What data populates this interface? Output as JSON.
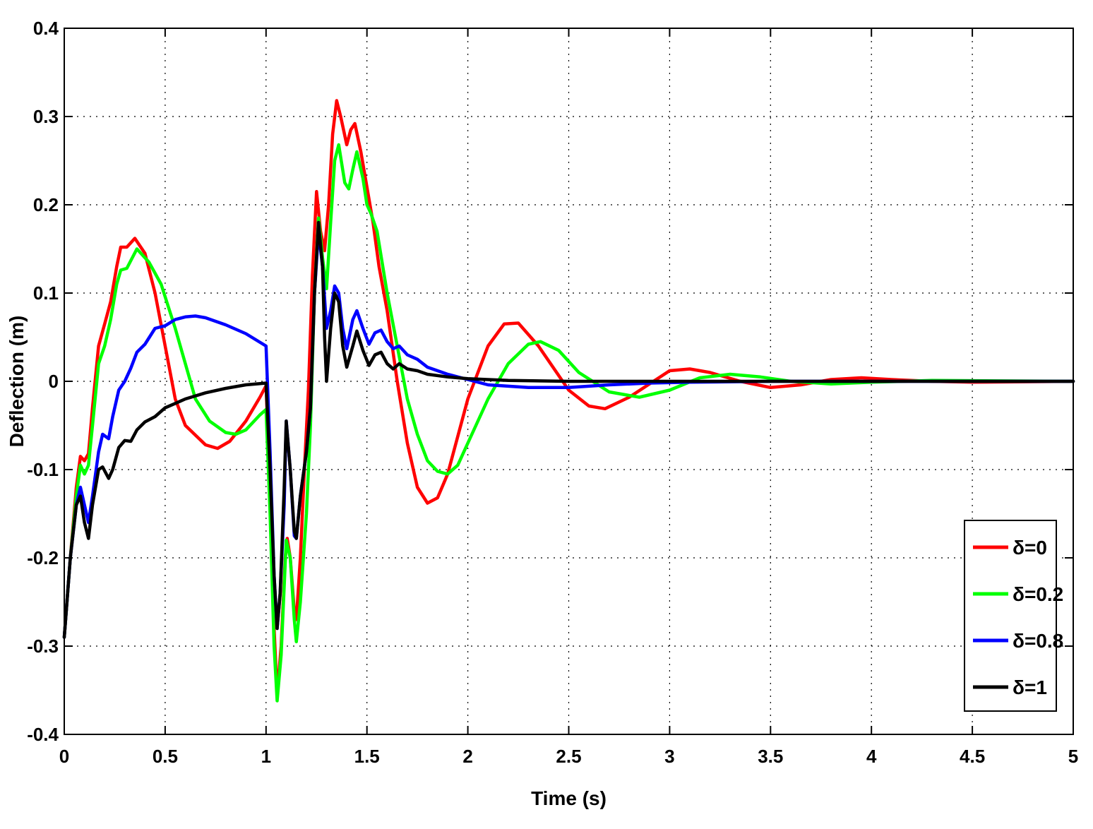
{
  "chart_data": {
    "type": "line",
    "title": "",
    "xlabel": "Time (s)",
    "ylabel": "Deflection (m)",
    "xlim": [
      0,
      5
    ],
    "ylim": [
      -0.4,
      0.4
    ],
    "xticks": [
      0,
      0.5,
      1,
      1.5,
      2,
      2.5,
      3,
      3.5,
      4,
      4.5,
      5
    ],
    "xtick_labels": [
      "0",
      "0.5",
      "1",
      "1.5",
      "2",
      "2.5",
      "3",
      "3.5",
      "4",
      "4.5",
      "5"
    ],
    "yticks": [
      -0.4,
      -0.3,
      -0.2,
      -0.1,
      0,
      0.1,
      0.2,
      0.3,
      0.4
    ],
    "ytick_labels": [
      "-0.4",
      "-0.3",
      "-0.2",
      "-0.1",
      "0",
      "0.1",
      "0.2",
      "0.3",
      "0.4"
    ],
    "grid": true,
    "legend_position": "bottom-right",
    "series": [
      {
        "name": "δ=0",
        "color": "#ff0000",
        "points": [
          [
            0,
            -0.29
          ],
          [
            0.03,
            -0.2
          ],
          [
            0.06,
            -0.12
          ],
          [
            0.08,
            -0.085
          ],
          [
            0.1,
            -0.09
          ],
          [
            0.12,
            -0.082
          ],
          [
            0.14,
            -0.03
          ],
          [
            0.17,
            0.04
          ],
          [
            0.2,
            0.065
          ],
          [
            0.23,
            0.09
          ],
          [
            0.26,
            0.13
          ],
          [
            0.28,
            0.152
          ],
          [
            0.31,
            0.152
          ],
          [
            0.35,
            0.162
          ],
          [
            0.4,
            0.145
          ],
          [
            0.45,
            0.1
          ],
          [
            0.5,
            0.04
          ],
          [
            0.55,
            -0.02
          ],
          [
            0.6,
            -0.05
          ],
          [
            0.7,
            -0.072
          ],
          [
            0.76,
            -0.076
          ],
          [
            0.82,
            -0.068
          ],
          [
            0.9,
            -0.045
          ],
          [
            0.97,
            -0.018
          ],
          [
            1.0,
            -0.005
          ],
          [
            1.02,
            -0.12
          ],
          [
            1.04,
            -0.28
          ],
          [
            1.055,
            -0.355
          ],
          [
            1.075,
            -0.3
          ],
          [
            1.095,
            -0.2
          ],
          [
            1.105,
            -0.178
          ],
          [
            1.12,
            -0.2
          ],
          [
            1.14,
            -0.26
          ],
          [
            1.15,
            -0.27
          ],
          [
            1.17,
            -0.2
          ],
          [
            1.19,
            -0.1
          ],
          [
            1.21,
            -0.01
          ],
          [
            1.23,
            0.12
          ],
          [
            1.25,
            0.215
          ],
          [
            1.27,
            0.17
          ],
          [
            1.29,
            0.148
          ],
          [
            1.31,
            0.2
          ],
          [
            1.33,
            0.28
          ],
          [
            1.35,
            0.318
          ],
          [
            1.37,
            0.3
          ],
          [
            1.4,
            0.268
          ],
          [
            1.42,
            0.285
          ],
          [
            1.44,
            0.292
          ],
          [
            1.47,
            0.26
          ],
          [
            1.5,
            0.22
          ],
          [
            1.53,
            0.18
          ],
          [
            1.56,
            0.13
          ],
          [
            1.6,
            0.08
          ],
          [
            1.65,
            0.0
          ],
          [
            1.7,
            -0.07
          ],
          [
            1.75,
            -0.12
          ],
          [
            1.8,
            -0.138
          ],
          [
            1.85,
            -0.132
          ],
          [
            1.9,
            -0.105
          ],
          [
            2.0,
            -0.02
          ],
          [
            2.1,
            0.04
          ],
          [
            2.18,
            0.065
          ],
          [
            2.25,
            0.066
          ],
          [
            2.35,
            0.04
          ],
          [
            2.5,
            -0.01
          ],
          [
            2.6,
            -0.028
          ],
          [
            2.68,
            -0.031
          ],
          [
            2.8,
            -0.018
          ],
          [
            3.0,
            0.012
          ],
          [
            3.1,
            0.014
          ],
          [
            3.2,
            0.01
          ],
          [
            3.35,
            0.0
          ],
          [
            3.5,
            -0.007
          ],
          [
            3.65,
            -0.004
          ],
          [
            3.8,
            0.002
          ],
          [
            3.95,
            0.004
          ],
          [
            4.1,
            0.002
          ],
          [
            4.3,
            0.0
          ],
          [
            4.5,
            -0.001
          ],
          [
            5.0,
            0.0
          ]
        ]
      },
      {
        "name": "δ=0.2",
        "color": "#00ff00",
        "points": [
          [
            0,
            -0.29
          ],
          [
            0.03,
            -0.2
          ],
          [
            0.06,
            -0.13
          ],
          [
            0.08,
            -0.095
          ],
          [
            0.1,
            -0.105
          ],
          [
            0.12,
            -0.095
          ],
          [
            0.14,
            -0.05
          ],
          [
            0.17,
            0.02
          ],
          [
            0.2,
            0.04
          ],
          [
            0.23,
            0.07
          ],
          [
            0.26,
            0.11
          ],
          [
            0.28,
            0.126
          ],
          [
            0.31,
            0.128
          ],
          [
            0.36,
            0.15
          ],
          [
            0.42,
            0.135
          ],
          [
            0.48,
            0.11
          ],
          [
            0.55,
            0.06
          ],
          [
            0.6,
            0.02
          ],
          [
            0.65,
            -0.02
          ],
          [
            0.72,
            -0.045
          ],
          [
            0.8,
            -0.058
          ],
          [
            0.85,
            -0.06
          ],
          [
            0.9,
            -0.055
          ],
          [
            0.97,
            -0.038
          ],
          [
            1.0,
            -0.032
          ],
          [
            1.02,
            -0.15
          ],
          [
            1.04,
            -0.3
          ],
          [
            1.055,
            -0.362
          ],
          [
            1.075,
            -0.31
          ],
          [
            1.1,
            -0.18
          ],
          [
            1.12,
            -0.2
          ],
          [
            1.14,
            -0.27
          ],
          [
            1.15,
            -0.295
          ],
          [
            1.17,
            -0.25
          ],
          [
            1.2,
            -0.15
          ],
          [
            1.22,
            -0.05
          ],
          [
            1.24,
            0.1
          ],
          [
            1.26,
            0.185
          ],
          [
            1.28,
            0.14
          ],
          [
            1.3,
            0.105
          ],
          [
            1.32,
            0.18
          ],
          [
            1.34,
            0.25
          ],
          [
            1.36,
            0.268
          ],
          [
            1.39,
            0.225
          ],
          [
            1.41,
            0.218
          ],
          [
            1.43,
            0.24
          ],
          [
            1.45,
            0.26
          ],
          [
            1.48,
            0.23
          ],
          [
            1.5,
            0.2
          ],
          [
            1.52,
            0.19
          ],
          [
            1.55,
            0.17
          ],
          [
            1.6,
            0.1
          ],
          [
            1.65,
            0.04
          ],
          [
            1.7,
            -0.02
          ],
          [
            1.75,
            -0.06
          ],
          [
            1.8,
            -0.09
          ],
          [
            1.85,
            -0.102
          ],
          [
            1.9,
            -0.105
          ],
          [
            1.95,
            -0.095
          ],
          [
            2.0,
            -0.07
          ],
          [
            2.1,
            -0.02
          ],
          [
            2.2,
            0.02
          ],
          [
            2.3,
            0.042
          ],
          [
            2.36,
            0.045
          ],
          [
            2.45,
            0.035
          ],
          [
            2.55,
            0.01
          ],
          [
            2.7,
            -0.012
          ],
          [
            2.85,
            -0.018
          ],
          [
            3.0,
            -0.01
          ],
          [
            3.15,
            0.004
          ],
          [
            3.3,
            0.008
          ],
          [
            3.45,
            0.005
          ],
          [
            3.6,
            0.0
          ],
          [
            3.8,
            -0.003
          ],
          [
            4.0,
            -0.001
          ],
          [
            4.3,
            0.001
          ],
          [
            5.0,
            0.0
          ]
        ]
      },
      {
        "name": "δ=0.8",
        "color": "#0000ff",
        "points": [
          [
            0,
            -0.29
          ],
          [
            0.03,
            -0.2
          ],
          [
            0.06,
            -0.14
          ],
          [
            0.08,
            -0.12
          ],
          [
            0.1,
            -0.14
          ],
          [
            0.12,
            -0.16
          ],
          [
            0.14,
            -0.13
          ],
          [
            0.17,
            -0.08
          ],
          [
            0.19,
            -0.06
          ],
          [
            0.22,
            -0.065
          ],
          [
            0.24,
            -0.04
          ],
          [
            0.27,
            -0.01
          ],
          [
            0.3,
            0.0
          ],
          [
            0.33,
            0.015
          ],
          [
            0.36,
            0.033
          ],
          [
            0.4,
            0.042
          ],
          [
            0.45,
            0.06
          ],
          [
            0.5,
            0.063
          ],
          [
            0.55,
            0.07
          ],
          [
            0.6,
            0.073
          ],
          [
            0.65,
            0.074
          ],
          [
            0.7,
            0.072
          ],
          [
            0.8,
            0.064
          ],
          [
            0.9,
            0.054
          ],
          [
            1.0,
            0.04
          ],
          [
            1.02,
            -0.08
          ],
          [
            1.04,
            -0.22
          ],
          [
            1.055,
            -0.28
          ],
          [
            1.07,
            -0.24
          ],
          [
            1.09,
            -0.14
          ],
          [
            1.1,
            -0.045
          ],
          [
            1.12,
            -0.1
          ],
          [
            1.14,
            -0.175
          ],
          [
            1.15,
            -0.178
          ],
          [
            1.17,
            -0.13
          ],
          [
            1.2,
            -0.08
          ],
          [
            1.22,
            -0.03
          ],
          [
            1.24,
            0.1
          ],
          [
            1.26,
            0.17
          ],
          [
            1.28,
            0.13
          ],
          [
            1.3,
            0.06
          ],
          [
            1.32,
            0.08
          ],
          [
            1.34,
            0.108
          ],
          [
            1.36,
            0.1
          ],
          [
            1.38,
            0.06
          ],
          [
            1.4,
            0.037
          ],
          [
            1.43,
            0.07
          ],
          [
            1.45,
            0.08
          ],
          [
            1.48,
            0.06
          ],
          [
            1.51,
            0.042
          ],
          [
            1.54,
            0.055
          ],
          [
            1.57,
            0.058
          ],
          [
            1.6,
            0.045
          ],
          [
            1.63,
            0.037
          ],
          [
            1.66,
            0.04
          ],
          [
            1.7,
            0.03
          ],
          [
            1.75,
            0.025
          ],
          [
            1.8,
            0.016
          ],
          [
            1.9,
            0.008
          ],
          [
            2.0,
            0.002
          ],
          [
            2.1,
            -0.004
          ],
          [
            2.3,
            -0.007
          ],
          [
            2.5,
            -0.007
          ],
          [
            2.7,
            -0.004
          ],
          [
            2.9,
            -0.002
          ],
          [
            3.1,
            -0.001
          ],
          [
            3.5,
            0.0
          ],
          [
            5.0,
            0.0
          ]
        ]
      },
      {
        "name": "δ=1",
        "color": "#000000",
        "points": [
          [
            0,
            -0.29
          ],
          [
            0.03,
            -0.2
          ],
          [
            0.06,
            -0.14
          ],
          [
            0.08,
            -0.13
          ],
          [
            0.1,
            -0.16
          ],
          [
            0.12,
            -0.178
          ],
          [
            0.14,
            -0.14
          ],
          [
            0.17,
            -0.1
          ],
          [
            0.19,
            -0.097
          ],
          [
            0.22,
            -0.11
          ],
          [
            0.24,
            -0.1
          ],
          [
            0.27,
            -0.075
          ],
          [
            0.3,
            -0.067
          ],
          [
            0.33,
            -0.068
          ],
          [
            0.36,
            -0.055
          ],
          [
            0.4,
            -0.046
          ],
          [
            0.45,
            -0.04
          ],
          [
            0.5,
            -0.03
          ],
          [
            0.55,
            -0.025
          ],
          [
            0.6,
            -0.02
          ],
          [
            0.7,
            -0.013
          ],
          [
            0.8,
            -0.008
          ],
          [
            0.9,
            -0.004
          ],
          [
            1.0,
            -0.002
          ],
          [
            1.02,
            -0.1
          ],
          [
            1.04,
            -0.22
          ],
          [
            1.055,
            -0.28
          ],
          [
            1.07,
            -0.24
          ],
          [
            1.09,
            -0.12
          ],
          [
            1.1,
            -0.045
          ],
          [
            1.12,
            -0.1
          ],
          [
            1.14,
            -0.17
          ],
          [
            1.15,
            -0.178
          ],
          [
            1.17,
            -0.13
          ],
          [
            1.2,
            -0.08
          ],
          [
            1.22,
            -0.03
          ],
          [
            1.24,
            0.1
          ],
          [
            1.26,
            0.18
          ],
          [
            1.28,
            0.13
          ],
          [
            1.29,
            0.05
          ],
          [
            1.3,
            0.0
          ],
          [
            1.32,
            0.06
          ],
          [
            1.34,
            0.1
          ],
          [
            1.36,
            0.09
          ],
          [
            1.38,
            0.04
          ],
          [
            1.4,
            0.016
          ],
          [
            1.43,
            0.04
          ],
          [
            1.45,
            0.057
          ],
          [
            1.48,
            0.035
          ],
          [
            1.51,
            0.018
          ],
          [
            1.54,
            0.03
          ],
          [
            1.57,
            0.033
          ],
          [
            1.6,
            0.02
          ],
          [
            1.63,
            0.014
          ],
          [
            1.66,
            0.02
          ],
          [
            1.7,
            0.014
          ],
          [
            1.75,
            0.012
          ],
          [
            1.8,
            0.008
          ],
          [
            1.9,
            0.005
          ],
          [
            2.0,
            0.003
          ],
          [
            2.2,
            0.001
          ],
          [
            2.5,
            0.0
          ],
          [
            5.0,
            0.0
          ]
        ]
      }
    ]
  }
}
